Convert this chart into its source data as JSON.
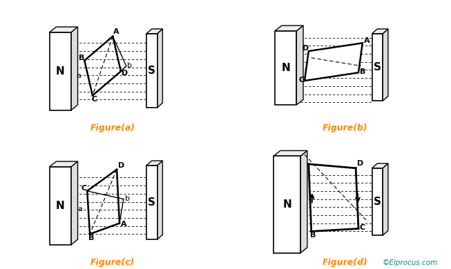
{
  "bg_color": "#ffffff",
  "title_color": "#ff8800",
  "watermark": "©Elprocus.com",
  "watermark_color": "#008888",
  "figures": [
    "Figure(a)",
    "Figure(b)",
    "Figure(c)",
    "Figure(d)"
  ]
}
